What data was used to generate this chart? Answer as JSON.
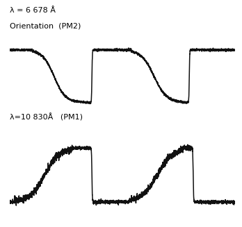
{
  "bg_color": "#ffffff",
  "line_color": "#111111",
  "line_width": 1.1,
  "label_top1": "λ = 6 678 Å",
  "label_top2": "Orientation  (PM2)",
  "label_bot": "λ=10 830Å   (PM1)",
  "label_fontsize": 8.0,
  "figsize": [
    3.48,
    3.27
  ],
  "dpi": 100,
  "noise_seed": 7
}
